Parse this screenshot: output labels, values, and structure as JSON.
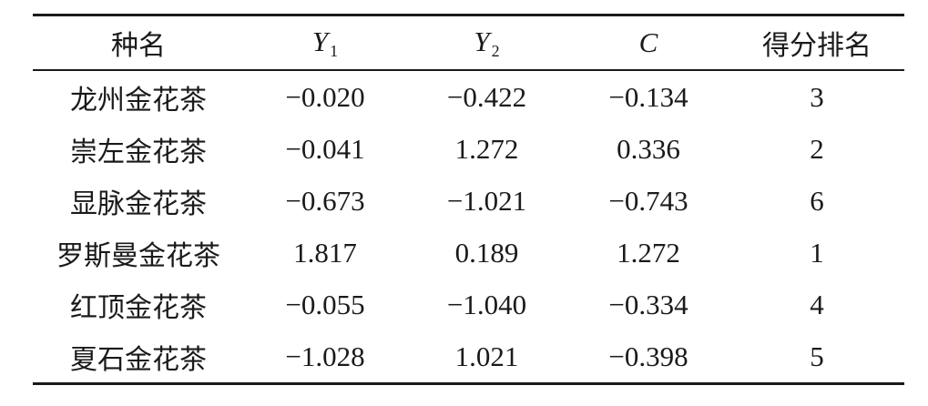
{
  "table": {
    "headers": {
      "species": "种名",
      "y1_symbol": "Y",
      "y1_sub": "1",
      "y2_symbol": "Y",
      "y2_sub": "2",
      "c_symbol": "C",
      "rank": "得分排名"
    },
    "rows": [
      {
        "species": "龙州金花茶",
        "y1": "−0.020",
        "y2": "−0.422",
        "c": "−0.134",
        "rank": "3"
      },
      {
        "species": "崇左金花茶",
        "y1": "−0.041",
        "y2": "1.272",
        "c": "0.336",
        "rank": "2"
      },
      {
        "species": "显脉金花茶",
        "y1": "−0.673",
        "y2": "−1.021",
        "c": "−0.743",
        "rank": "6"
      },
      {
        "species": "罗斯曼金花茶",
        "y1": "1.817",
        "y2": "0.189",
        "c": "1.272",
        "rank": "1"
      },
      {
        "species": "红顶金花茶",
        "y1": "−0.055",
        "y2": "−1.040",
        "c": "−0.334",
        "rank": "4"
      },
      {
        "species": "夏石金花茶",
        "y1": "−1.028",
        "y2": "1.021",
        "c": "−0.398",
        "rank": "5"
      }
    ]
  }
}
